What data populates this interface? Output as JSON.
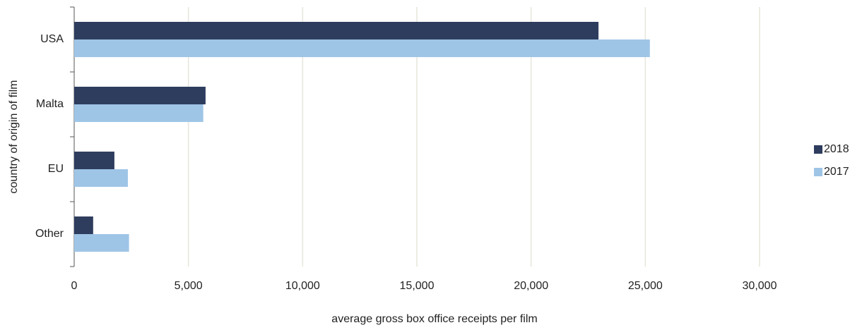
{
  "chart_data": {
    "type": "bar",
    "orientation": "horizontal",
    "x_label": "average gross box office receipts per film",
    "y_label": "country of origin of film",
    "categories": [
      "USA",
      "Malta",
      "EU",
      "Other"
    ],
    "series": [
      {
        "name": "2018",
        "color": "#2e3d5e",
        "values": [
          22950,
          5750,
          1760,
          830
        ]
      },
      {
        "name": "2017",
        "color": "#9fc5e6",
        "values": [
          25200,
          5650,
          2350,
          2400
        ]
      }
    ],
    "xlim": [
      0,
      30000
    ],
    "xticks": [
      0,
      {
        "value": 5000,
        "label": "5,000"
      },
      {
        "value": 10000,
        "label": "10,000"
      },
      {
        "value": 15000,
        "label": "15,000"
      },
      {
        "value": 20000,
        "label": "20,000"
      },
      {
        "value": 25000,
        "label": "25,000"
      },
      {
        "value": 30000,
        "label": "30,000"
      }
    ],
    "grid": true,
    "legend": "right"
  }
}
